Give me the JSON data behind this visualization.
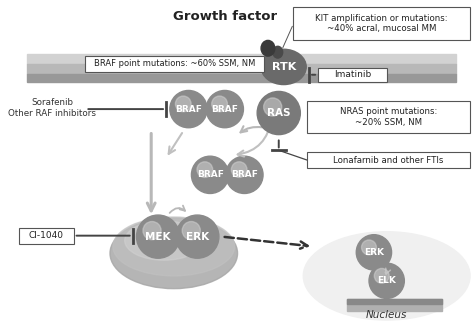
{
  "bg_color": "#ffffff",
  "growth_factor_text": "Growth factor",
  "kit_text": "KIT amplification or mutations:\n~40% acral, mucosal MM",
  "braf_mut_text": "BRAF point mutations: ~60% SSM, NM",
  "imatinib_text": "Imatinib",
  "sorafenib_text": "Sorafenib\nOther RAF inhibitors",
  "nras_text": "NRAS point mutations:\n~20% SSM, NM",
  "lonafarnib_text": "Lonafarnib and other FTIs",
  "ci1040_text": "CI-1040",
  "nucleus_text": "Nucleus",
  "sphere_gray": "#8a8a8a",
  "sphere_light": "#b5b5b5",
  "membrane_top": "#c8c8c8",
  "membrane_bot": "#9a9a9a",
  "arrow_gray": "#b0b0b0",
  "line_dark": "#555555",
  "nucleus_fill": "#f0f0f0",
  "nucleus_edge": "#cccccc",
  "cyto_fill": "#b0b0b0",
  "rtk_fill": "#6a6a6a",
  "ras_fill": "#7a7a7a",
  "gf_fill": "#3a3a3a"
}
